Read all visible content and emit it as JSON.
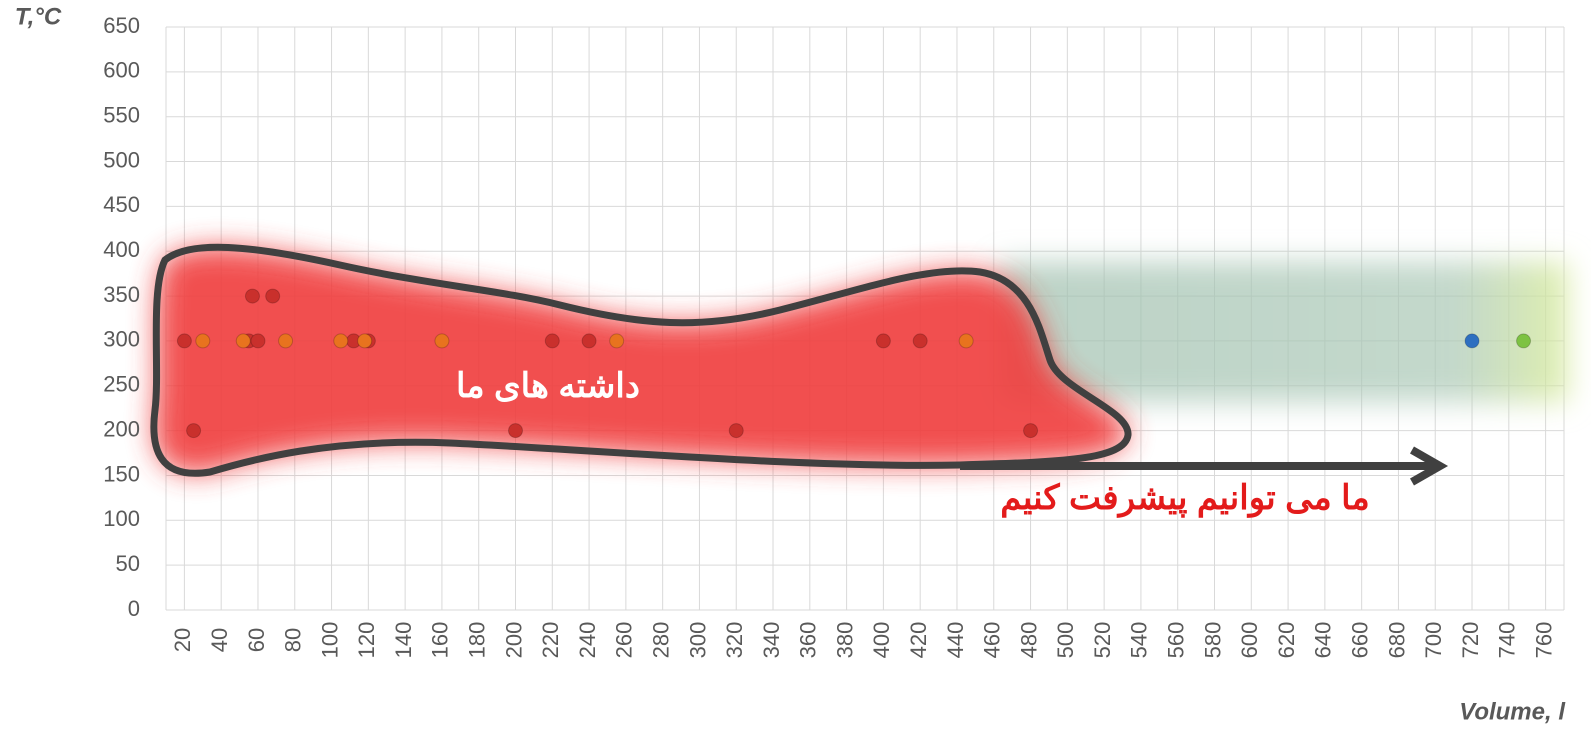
{
  "chart_data": {
    "type": "scatter",
    "y_label": "T,°C",
    "x_label": "Volume, l",
    "annotations": [
      "داشته های ما",
      "ما می توانیم پیشرفت کنیم"
    ],
    "series": [
      {
        "color": "#c9302c",
        "x": [
          20,
          25,
          55,
          57,
          60,
          68,
          112,
          120,
          200,
          220,
          240,
          320,
          400,
          420,
          480
        ],
        "values": [
          300,
          200,
          300,
          350,
          300,
          350,
          300,
          300,
          200,
          300,
          300,
          200,
          300,
          300,
          200
        ]
      },
      {
        "color": "#e8731e",
        "x": [
          30,
          52,
          75,
          105,
          118,
          160,
          255,
          445
        ],
        "values": [
          300,
          300,
          300,
          300,
          300,
          300,
          300,
          300
        ]
      },
      {
        "color": "#2e6fc0",
        "x": [
          720
        ],
        "values": [
          300
        ]
      },
      {
        "color": "#7dc242",
        "x": [
          748
        ],
        "values": [
          300
        ]
      }
    ],
    "xlim": [
      10,
      770
    ],
    "xticks": [
      20,
      40,
      60,
      80,
      100,
      120,
      140,
      160,
      180,
      200,
      220,
      240,
      260,
      280,
      300,
      320,
      340,
      360,
      380,
      400,
      420,
      440,
      460,
      480,
      500,
      520,
      540,
      560,
      580,
      600,
      620,
      640,
      660,
      680,
      700,
      720,
      740,
      760
    ],
    "ylim": [
      0,
      650
    ],
    "yticks": [
      0,
      50,
      100,
      150,
      200,
      250,
      300,
      350,
      400,
      450,
      500,
      550,
      600,
      650
    ],
    "grid": true
  }
}
